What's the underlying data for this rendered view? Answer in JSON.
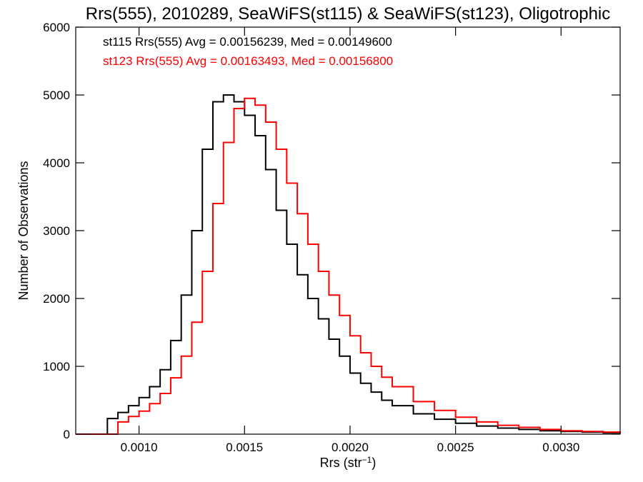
{
  "chart_data": {
    "type": "line",
    "title": "Rrs(555), 2010289, SeaWiFS(st115) & SeaWiFS(st123), Oligotrophic",
    "xlabel_main": "Rrs (str",
    "xlabel_sup": "−1",
    "xlabel_close": ")",
    "ylabel": "Number of Observations",
    "xlim": [
      0.0007,
      0.00328
    ],
    "ylim": [
      0,
      6000
    ],
    "x_ticks": [
      {
        "value": 0.001,
        "label": "0.0010"
      },
      {
        "value": 0.0015,
        "label": "0.0015"
      },
      {
        "value": 0.002,
        "label": "0.0020"
      },
      {
        "value": 0.0025,
        "label": "0.0025"
      },
      {
        "value": 0.003,
        "label": "0.0030"
      }
    ],
    "y_ticks": [
      {
        "value": 0,
        "label": "0"
      },
      {
        "value": 1000,
        "label": "1000"
      },
      {
        "value": 2000,
        "label": "2000"
      },
      {
        "value": 3000,
        "label": "3000"
      },
      {
        "value": 4000,
        "label": "4000"
      },
      {
        "value": 5000,
        "label": "5000"
      },
      {
        "value": 6000,
        "label": "6000"
      }
    ],
    "stats": [
      {
        "text": "st115 Rrs(555) Avg = 0.00156239, Med = 0.00149600",
        "color": "#000000"
      },
      {
        "text": "st123 Rrs(555) Avg = 0.00163493, Med = 0.00156800",
        "color": "#ff0000"
      }
    ],
    "series": [
      {
        "name": "st115",
        "color": "#000000",
        "x": [
          0.0007,
          0.0008,
          0.00085,
          0.0009,
          0.00095,
          0.001,
          0.00105,
          0.0011,
          0.00115,
          0.0012,
          0.00125,
          0.0013,
          0.00135,
          0.0014,
          0.00145,
          0.0015,
          0.00155,
          0.0016,
          0.00165,
          0.0017,
          0.00175,
          0.0018,
          0.00185,
          0.0019,
          0.00195,
          0.002,
          0.00205,
          0.0021,
          0.00215,
          0.0022,
          0.0023,
          0.0024,
          0.0025,
          0.0026,
          0.0027,
          0.0028,
          0.0029,
          0.003,
          0.0031,
          0.0032,
          0.00328
        ],
        "y": [
          0,
          0,
          230,
          320,
          420,
          540,
          700,
          950,
          1380,
          2050,
          3000,
          4200,
          4900,
          5000,
          4900,
          4700,
          4400,
          3900,
          3300,
          2800,
          2350,
          2000,
          1700,
          1400,
          1150,
          900,
          750,
          620,
          500,
          420,
          300,
          220,
          160,
          120,
          90,
          70,
          50,
          40,
          30,
          20,
          15
        ]
      },
      {
        "name": "st123",
        "color": "#ff0000",
        "x": [
          0.0007,
          0.00085,
          0.0009,
          0.00095,
          0.001,
          0.00105,
          0.0011,
          0.00115,
          0.0012,
          0.00125,
          0.0013,
          0.00135,
          0.0014,
          0.00145,
          0.0015,
          0.00155,
          0.0016,
          0.00165,
          0.0017,
          0.00175,
          0.0018,
          0.00185,
          0.0019,
          0.00195,
          0.002,
          0.00205,
          0.0021,
          0.00215,
          0.0022,
          0.0023,
          0.0024,
          0.0025,
          0.0026,
          0.0027,
          0.0028,
          0.0029,
          0.003,
          0.0031,
          0.0032,
          0.00328
        ],
        "y": [
          0,
          0,
          180,
          260,
          340,
          450,
          600,
          830,
          1150,
          1650,
          2400,
          3400,
          4300,
          4800,
          4950,
          4850,
          4600,
          4200,
          3700,
          3250,
          2800,
          2400,
          2050,
          1750,
          1450,
          1200,
          1000,
          840,
          700,
          480,
          350,
          250,
          180,
          130,
          100,
          70,
          50,
          40,
          30,
          20
        ]
      }
    ]
  }
}
